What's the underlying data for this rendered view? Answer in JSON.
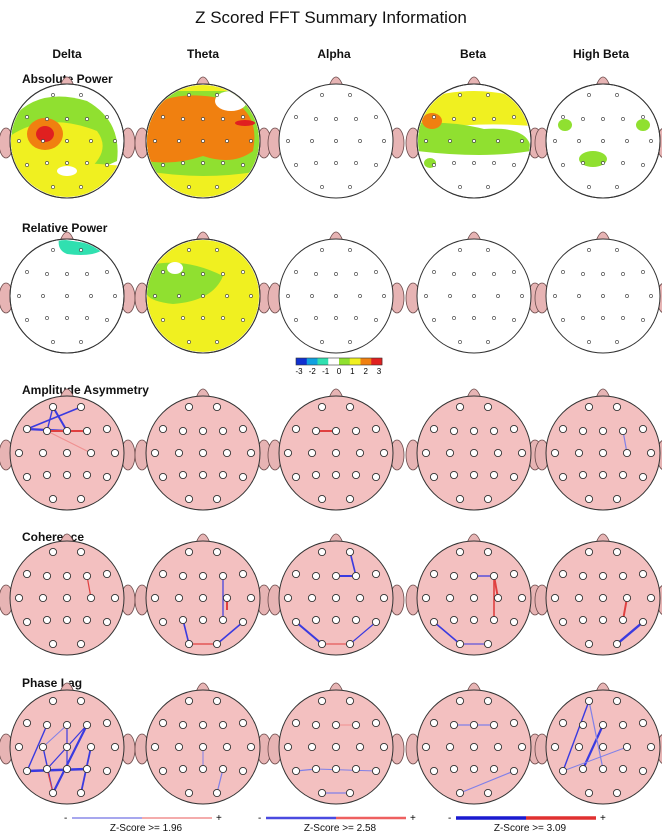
{
  "title": "Z Scored FFT Summary Information",
  "bands": [
    "Delta",
    "Theta",
    "Alpha",
    "Beta",
    "High Beta"
  ],
  "sections": [
    "Absolute Power",
    "Relative Power",
    "Amplitude Asymmetry",
    "Coherence",
    "Phase Lag"
  ],
  "color_scale": {
    "labels": [
      "-3",
      "-2",
      "-1",
      "0",
      "1",
      "2",
      "3"
    ],
    "colors": [
      "#1030d0",
      "#10a0e0",
      "#30e0b0",
      "#ffffff",
      "#90e030",
      "#f0f020",
      "#f08010",
      "#e02020"
    ]
  },
  "legends": [
    {
      "caption": "Z-Score >= 1.96",
      "minus": "-",
      "plus": "+",
      "neg_color": "#8a8ae8",
      "pos_color": "#f09090"
    },
    {
      "caption": "Z-Score >= 2.58",
      "minus": "-",
      "plus": "+",
      "neg_color": "#4a4ae0",
      "pos_color": "#ee6060"
    },
    {
      "caption": "Z-Score >= 3.09",
      "minus": "-",
      "plus": "+",
      "neg_color": "#1a1ad0",
      "pos_color": "#e03030"
    }
  ]
}
